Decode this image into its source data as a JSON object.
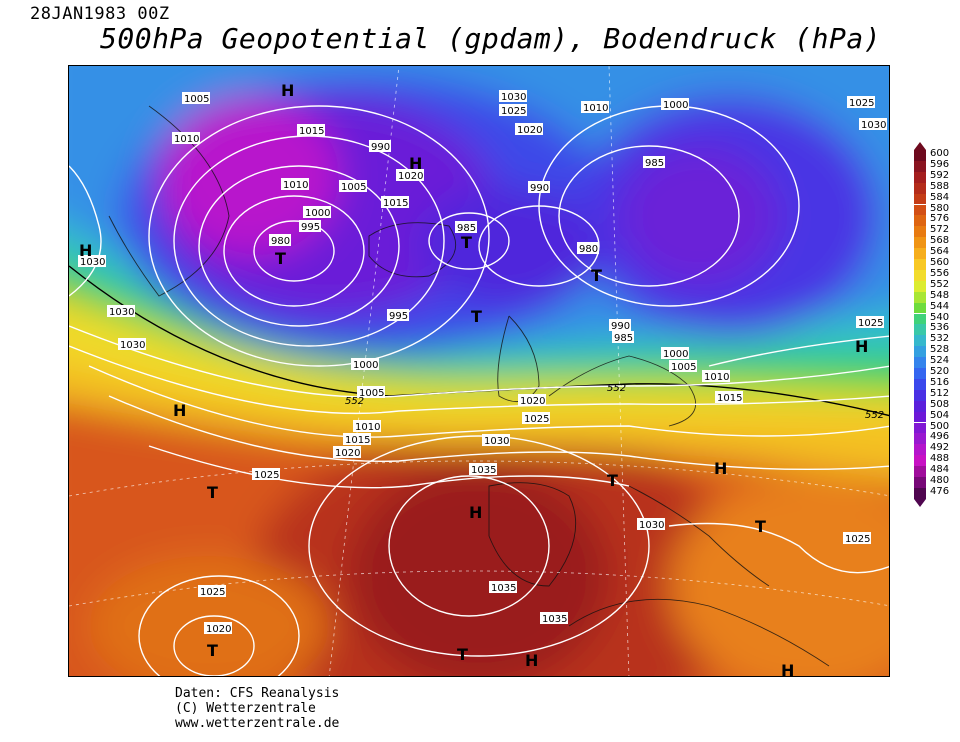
{
  "header": {
    "date": "28JAN1983 00Z",
    "title": "500hPa Geopotential (gpdam), Bodendruck (hPa)"
  },
  "legend": {
    "ticks": [
      "600",
      "596",
      "592",
      "588",
      "584",
      "580",
      "576",
      "572",
      "568",
      "564",
      "560",
      "556",
      "552",
      "548",
      "544",
      "540",
      "536",
      "532",
      "528",
      "524",
      "520",
      "516",
      "512",
      "508",
      "504",
      "500",
      "496",
      "492",
      "488",
      "484",
      "480",
      "476"
    ],
    "colors": [
      "#6e0a1e",
      "#8a1420",
      "#a41e1e",
      "#b42c1a",
      "#c43c16",
      "#d24e14",
      "#de6410",
      "#e87a10",
      "#f09414",
      "#f6ae1c",
      "#f8c824",
      "#f2dc2c",
      "#dcec30",
      "#a8e634",
      "#6edc3c",
      "#40d27a",
      "#3ac8a8",
      "#36b8cc",
      "#34a0e0",
      "#3484ec",
      "#3466f0",
      "#3a48ec",
      "#4a30e4",
      "#5a20dc",
      "#6c18d8",
      "#8018d4",
      "#9818d0",
      "#b414cc",
      "#c810c4",
      "#a00c9c",
      "#780878",
      "#500650"
    ]
  },
  "map": {
    "isobars": [
      "1005",
      "1010",
      "1015",
      "1030",
      "1025",
      "1020",
      "1010",
      "1000",
      "985",
      "990",
      "980",
      "1000",
      "1015",
      "1010",
      "1005",
      "1000",
      "995",
      "990",
      "985",
      "980",
      "1025",
      "1030",
      "1035",
      "1030",
      "1025",
      "1020",
      "1015",
      "1010",
      "1005",
      "1000",
      "995",
      "1030",
      "1020",
      "1025",
      "1035",
      "1035",
      "1030",
      "1025",
      "1025",
      "1020",
      "1030",
      "1030",
      "1025",
      "1030",
      "990",
      "1005",
      "1020",
      "985",
      "552",
      "552",
      "552",
      "1010",
      "1015",
      "1025",
      "1030",
      "1000",
      "1005"
    ],
    "pressure_centers": [
      "H",
      "T",
      "H",
      "T",
      "T",
      "T",
      "H",
      "H",
      "H",
      "T",
      "H",
      "T",
      "H",
      "T",
      "H",
      "H",
      "H",
      "H",
      "T",
      "H",
      "T"
    ]
  },
  "credits": {
    "line1": "Daten: CFS Reanalysis",
    "line2": "(C) Wetterzentrale",
    "line3": "www.wetterzentrale.de"
  }
}
